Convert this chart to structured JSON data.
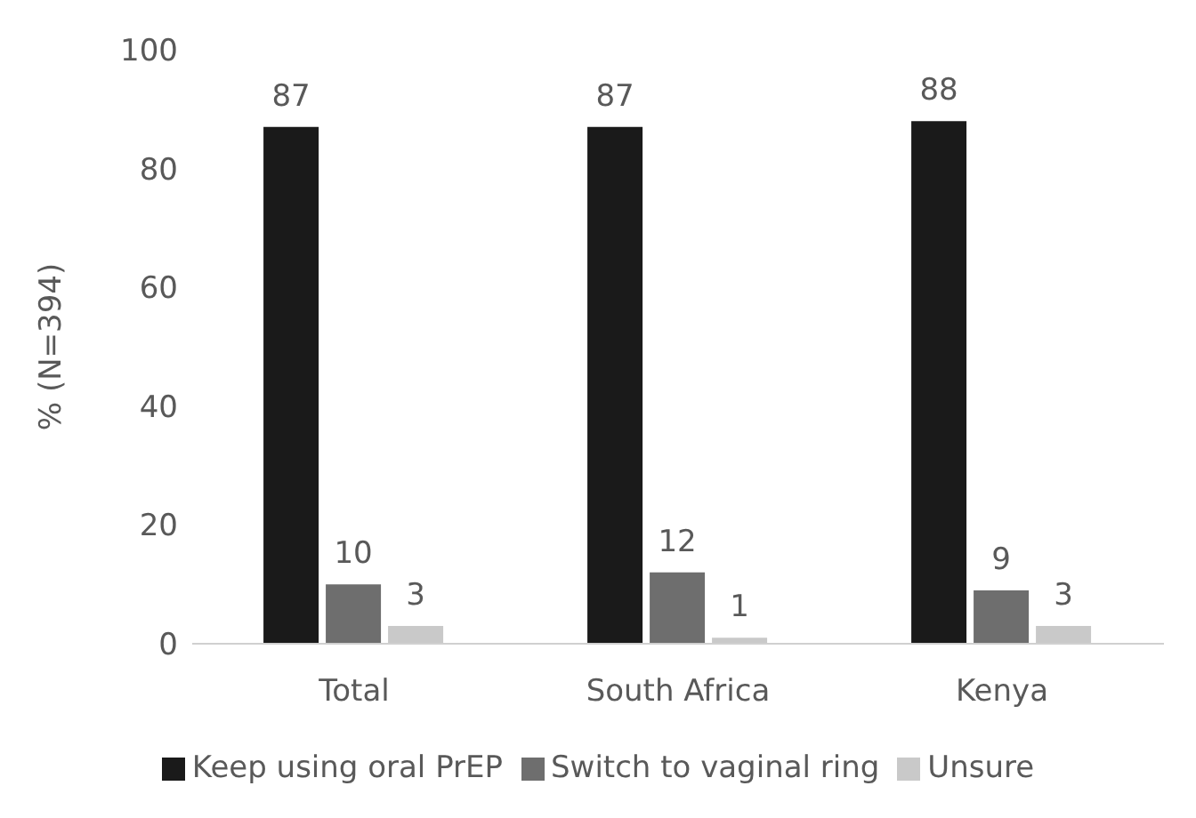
{
  "chart_data": {
    "type": "bar",
    "ylabel": "% (N=394)",
    "categories": [
      "Total",
      "South Africa",
      "Kenya"
    ],
    "series": [
      {
        "name": "Keep using oral PrEP",
        "color": "#1a1a1a",
        "values": [
          87,
          87,
          88
        ]
      },
      {
        "name": "Switch to vaginal ring",
        "color": "#6e6e6e",
        "values": [
          10,
          12,
          9
        ]
      },
      {
        "name": "Unsure",
        "color": "#c9c9c9",
        "values": [
          3,
          1,
          3
        ]
      }
    ],
    "ylim": [
      0,
      100
    ],
    "yticks": [
      0,
      20,
      40,
      60,
      80,
      100
    ],
    "grid": false,
    "legend": "bottom",
    "data_labels": true
  }
}
